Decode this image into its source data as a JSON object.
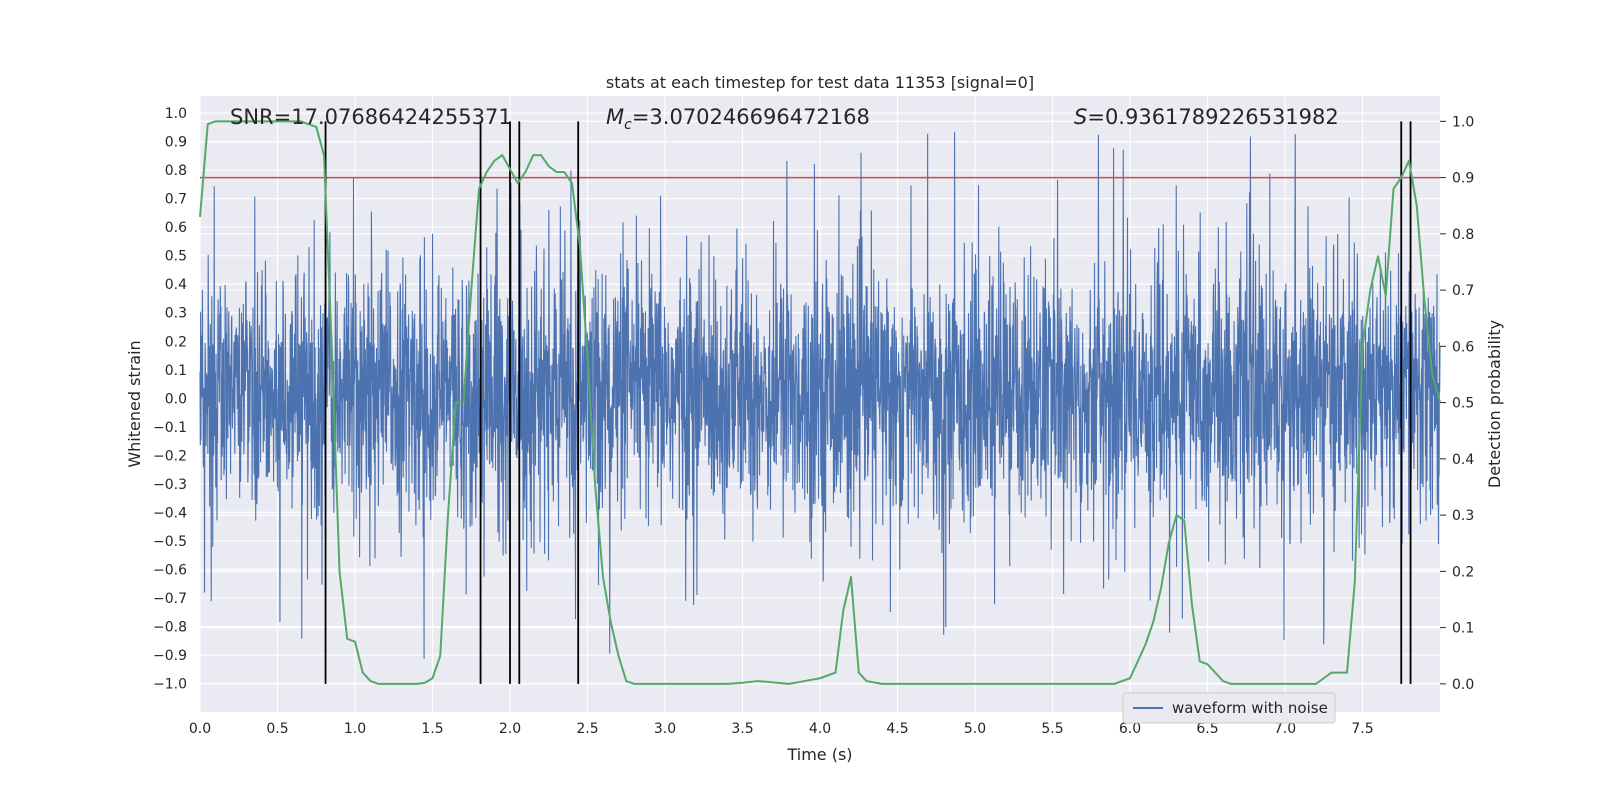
{
  "chart_data": {
    "type": "line",
    "title": "stats at each timestep for test data 11353 [signal=0]",
    "xlabel": "Time (s)",
    "ylabel_left": "Whitened strain",
    "ylabel_right": "Detection probability",
    "xlim": [
      0.0,
      8.0
    ],
    "ylim_left": [
      -1.1,
      1.06
    ],
    "ylim_right": [
      -0.05,
      1.045
    ],
    "x_ticks": [
      "0.0",
      "0.5",
      "1.0",
      "1.5",
      "2.0",
      "2.5",
      "3.0",
      "3.5",
      "4.0",
      "4.5",
      "5.0",
      "5.5",
      "6.0",
      "6.5",
      "7.0",
      "7.5"
    ],
    "y_ticks_left": [
      "1.0",
      "0.9",
      "0.8",
      "0.7",
      "0.6",
      "0.5",
      "0.4",
      "0.3",
      "0.2",
      "0.1",
      "0.0",
      "-0.1",
      "-0.2",
      "-0.3",
      "-0.4",
      "-0.5",
      "-0.6",
      "-0.7",
      "-0.8",
      "-0.9",
      "-1.0"
    ],
    "y_ticks_right": [
      "1.0",
      "0.9",
      "0.8",
      "0.7",
      "0.6",
      "0.5",
      "0.4",
      "0.3",
      "0.2",
      "0.1",
      "0.0"
    ],
    "annotations": {
      "snr": "SNR=17.07686424255371",
      "mc_symbol": "M",
      "mc_sub": "c",
      "mc_value": "=3.070246696472168",
      "s_symbol": "S",
      "s_value": "=0.9361789226531982"
    },
    "threshold": 0.9,
    "trigger_times": [
      0.81,
      1.81,
      2.0,
      2.06,
      2.44,
      7.75,
      7.81
    ],
    "detection_probability": {
      "x": [
        0.0,
        0.05,
        0.1,
        0.15,
        0.2,
        0.3,
        0.4,
        0.5,
        0.6,
        0.65,
        0.7,
        0.75,
        0.8,
        0.85,
        0.9,
        0.95,
        1.0,
        1.05,
        1.1,
        1.15,
        1.2,
        1.3,
        1.4,
        1.45,
        1.5,
        1.55,
        1.6,
        1.65,
        1.7,
        1.75,
        1.8,
        1.85,
        1.9,
        1.95,
        2.0,
        2.05,
        2.1,
        2.15,
        2.2,
        2.25,
        2.3,
        2.35,
        2.4,
        2.45,
        2.5,
        2.55,
        2.6,
        2.65,
        2.7,
        2.75,
        2.8,
        2.9,
        3.0,
        3.2,
        3.4,
        3.5,
        3.6,
        3.8,
        3.9,
        4.0,
        4.1,
        4.15,
        4.2,
        4.25,
        4.3,
        4.4,
        4.5,
        4.7,
        5.0,
        5.3,
        5.5,
        5.7,
        5.9,
        6.0,
        6.05,
        6.1,
        6.15,
        6.2,
        6.25,
        6.3,
        6.35,
        6.4,
        6.45,
        6.5,
        6.55,
        6.6,
        6.65,
        6.7,
        6.8,
        7.0,
        7.2,
        7.25,
        7.3,
        7.4,
        7.45,
        7.5,
        7.55,
        7.6,
        7.65,
        7.7,
        7.75,
        7.8,
        7.85,
        7.9,
        7.95,
        8.0
      ],
      "y": [
        0.83,
        0.995,
        1.0,
        1.0,
        1.0,
        1.0,
        1.0,
        1.0,
        1.0,
        1.0,
        0.995,
        0.99,
        0.94,
        0.6,
        0.2,
        0.08,
        0.075,
        0.02,
        0.005,
        0.0,
        0.0,
        0.0,
        0.0,
        0.002,
        0.01,
        0.05,
        0.3,
        0.5,
        0.5,
        0.7,
        0.88,
        0.91,
        0.93,
        0.94,
        0.915,
        0.89,
        0.91,
        0.94,
        0.94,
        0.92,
        0.91,
        0.91,
        0.89,
        0.78,
        0.58,
        0.35,
        0.19,
        0.11,
        0.05,
        0.005,
        0.0,
        0.0,
        0.0,
        0.0,
        0.0,
        0.002,
        0.005,
        0.0,
        0.005,
        0.01,
        0.02,
        0.13,
        0.19,
        0.02,
        0.005,
        0.0,
        0.0,
        0.0,
        0.0,
        0.0,
        0.0,
        0.0,
        0.0,
        0.01,
        0.04,
        0.07,
        0.11,
        0.17,
        0.25,
        0.3,
        0.29,
        0.14,
        0.04,
        0.035,
        0.02,
        0.005,
        0.0,
        0.0,
        0.0,
        0.0,
        0.0,
        0.01,
        0.02,
        0.02,
        0.18,
        0.6,
        0.7,
        0.76,
        0.69,
        0.88,
        0.9,
        0.93,
        0.85,
        0.68,
        0.55,
        0.5
      ]
    },
    "strain": {
      "type": "noise",
      "samples": 4096,
      "typical_range": [
        -0.45,
        0.6
      ],
      "extreme_range": [
        -1.0,
        0.96
      ]
    },
    "legend": {
      "label": "waveform with noise",
      "location": "lower-right"
    },
    "colors": {
      "strain": "#4c72b0",
      "probability": "#55a868",
      "threshold": "#c44e52",
      "trigger": "#000000",
      "background": "#eaeaf2",
      "grid": "#ffffff"
    }
  }
}
